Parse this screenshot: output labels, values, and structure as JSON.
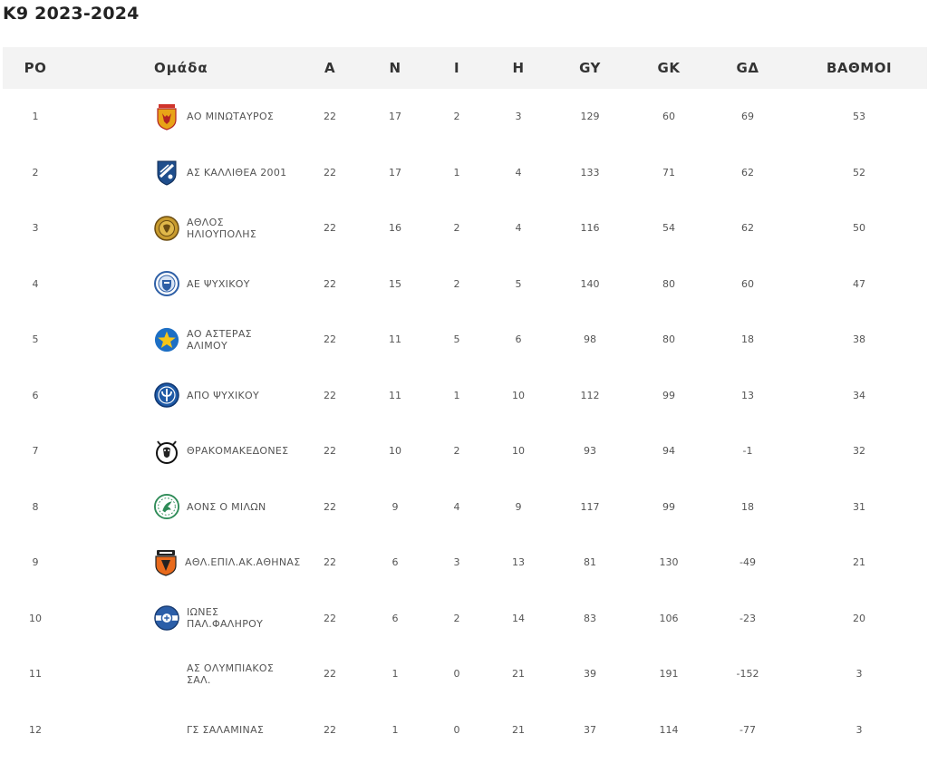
{
  "title": "K9 2023-2024",
  "columns": {
    "pos": "ΡΟ",
    "team": "Ομάδα",
    "played": "Α",
    "wins": "Ν",
    "draws": "Ι",
    "losses": "Η",
    "gf": "GY",
    "ga": "GK",
    "gd": "GΔ",
    "pts": "ΒΑΘΜΟΙ"
  },
  "rows": [
    {
      "pos": "1",
      "team": "ΑΟ ΜΙΝΩΤΑΥΡΟΣ",
      "logo": "minotavros-crest-icon",
      "played": "22",
      "wins": "17",
      "draws": "2",
      "losses": "3",
      "gf": "129",
      "ga": "60",
      "gd": "69",
      "pts": "53"
    },
    {
      "pos": "2",
      "team": "ΑΣ ΚΑΛΛΙΘΕΑ 2001",
      "logo": "kallithea-crest-icon",
      "played": "22",
      "wins": "17",
      "draws": "1",
      "losses": "4",
      "gf": "133",
      "ga": "71",
      "gd": "62",
      "pts": "52"
    },
    {
      "pos": "3",
      "team": "ΑΘΛΟΣ ΗΛΙΟΥΠΟΛΗΣ",
      "logo": "athlos-crest-icon",
      "played": "22",
      "wins": "16",
      "draws": "2",
      "losses": "4",
      "gf": "116",
      "ga": "54",
      "gd": "62",
      "pts": "50"
    },
    {
      "pos": "4",
      "team": "ΑΕ ΨΥΧΙΚΟΥ",
      "logo": "ae-psychikou-crest-icon",
      "played": "22",
      "wins": "15",
      "draws": "2",
      "losses": "5",
      "gf": "140",
      "ga": "80",
      "gd": "60",
      "pts": "47"
    },
    {
      "pos": "5",
      "team": "ΑΟ ΑΣΤΕΡΑΣ ΑΛΙΜΟΥ",
      "logo": "asteras-star-crest-icon",
      "played": "22",
      "wins": "11",
      "draws": "5",
      "losses": "6",
      "gf": "98",
      "ga": "80",
      "gd": "18",
      "pts": "38"
    },
    {
      "pos": "6",
      "team": "ΑΠΟ ΨΥΧΙΚΟΥ",
      "logo": "apo-psychikou-crest-icon",
      "played": "22",
      "wins": "11",
      "draws": "1",
      "losses": "10",
      "gf": "112",
      "ga": "99",
      "gd": "13",
      "pts": "34"
    },
    {
      "pos": "7",
      "team": "ΘΡΑΚΟΜΑΚΕΔΟΝΕΣ",
      "logo": "thrakomakedones-crest-icon",
      "played": "22",
      "wins": "10",
      "draws": "2",
      "losses": "10",
      "gf": "93",
      "ga": "94",
      "gd": "-1",
      "pts": "32"
    },
    {
      "pos": "8",
      "team": "ΑΟΝΣ Ο ΜΙΛΩΝ",
      "logo": "milon-crest-icon",
      "played": "22",
      "wins": "9",
      "draws": "4",
      "losses": "9",
      "gf": "117",
      "ga": "99",
      "gd": "18",
      "pts": "31"
    },
    {
      "pos": "9",
      "team": "ΑΘΛ.ΕΠΙΛ.ΑΚ.ΑΘΗΝΑΣ",
      "logo": "akadimia-crest-icon",
      "played": "22",
      "wins": "6",
      "draws": "3",
      "losses": "13",
      "gf": "81",
      "ga": "130",
      "gd": "-49",
      "pts": "21"
    },
    {
      "pos": "10",
      "team": "ΙΩΝΕΣ ΠΑΛ.ΦΑΛΗΡΟΥ",
      "logo": "iones-crest-icon",
      "played": "22",
      "wins": "6",
      "draws": "2",
      "losses": "14",
      "gf": "83",
      "ga": "106",
      "gd": "-23",
      "pts": "20"
    },
    {
      "pos": "11",
      "team": "ΑΣ ΟΛΥΜΠΙΑΚΟΣ ΣΑΛ.",
      "logo": "",
      "played": "22",
      "wins": "1",
      "draws": "0",
      "losses": "21",
      "gf": "39",
      "ga": "191",
      "gd": "-152",
      "pts": "3"
    },
    {
      "pos": "12",
      "team": "ΓΣ ΣΑΛΑΜΙΝΑΣ",
      "logo": "",
      "played": "22",
      "wins": "1",
      "draws": "0",
      "losses": "21",
      "gf": "37",
      "ga": "114",
      "gd": "-77",
      "pts": "3"
    }
  ]
}
